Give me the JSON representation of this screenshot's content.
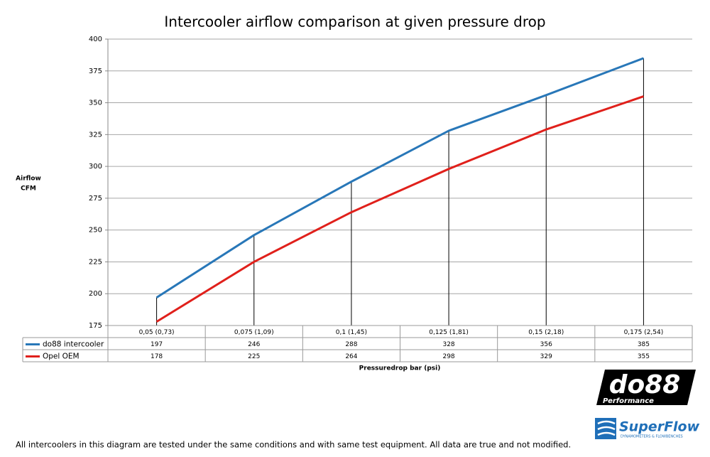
{
  "chart_data": {
    "type": "line",
    "title": "Intercooler airflow comparison at given pressure drop",
    "y_label": [
      "Airflow",
      "CFM"
    ],
    "x_label": "Pressuredrop bar (psi)",
    "categories": [
      "0,05 (0,73)",
      "0,075 (1,09)",
      "0,1 (1,45)",
      "0,125 (1,81)",
      "0,15 (2,18)",
      "0,175 (2,54)"
    ],
    "series": [
      {
        "name": "do88 intercooler",
        "color": "#2877b8",
        "values": [
          197,
          246,
          288,
          328,
          356,
          385
        ]
      },
      {
        "name": "Opel OEM",
        "color": "#e0201b",
        "values": [
          178,
          225,
          264,
          298,
          329,
          355
        ]
      }
    ],
    "ylim": [
      175,
      400
    ],
    "yticks": [
      175,
      200,
      225,
      250,
      275,
      300,
      325,
      350,
      375,
      400
    ],
    "grid": true,
    "drop_lines": true,
    "data_table": true
  },
  "footer_note": "All intercoolers in this diagram are tested under the same conditions and with same test equipment. All data are true and not modified.",
  "logos": {
    "brand": "do88",
    "brand_sub": "Performance",
    "partner": "SuperFlow",
    "partner_sub": "DYNAMOMETERS & FLOWBENCHES"
  }
}
